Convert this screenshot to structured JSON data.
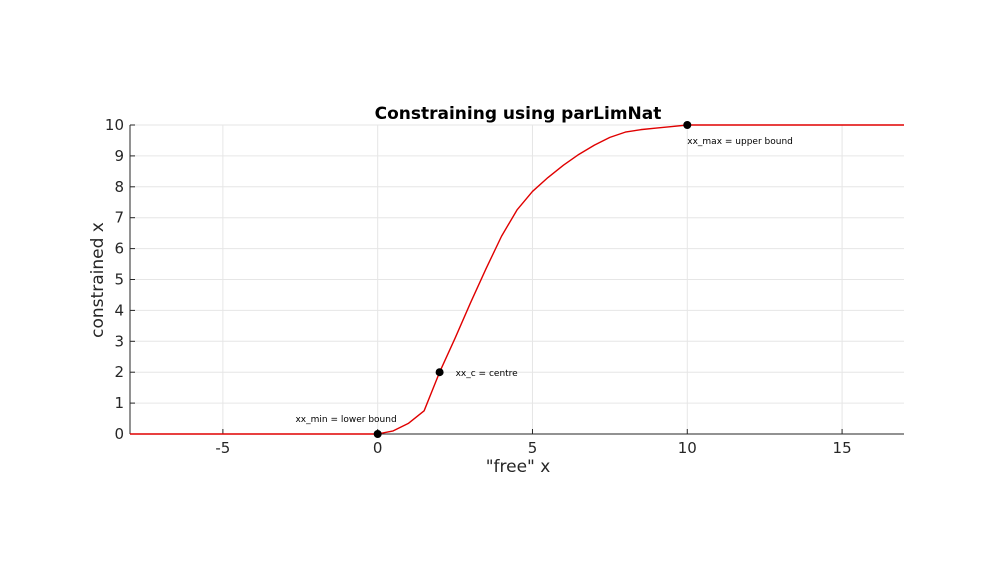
{
  "chart_data": {
    "type": "line",
    "title": "Constraining using parLimNat",
    "xlabel": "\"free\" x",
    "ylabel": "constrained x",
    "xlim": [
      -8,
      17
    ],
    "ylim": [
      0,
      10
    ],
    "xticks": [
      -5,
      0,
      5,
      10,
      15
    ],
    "yticks": [
      0,
      1,
      2,
      3,
      4,
      5,
      6,
      7,
      8,
      9,
      10
    ],
    "grid": true,
    "line_color": "#e00000",
    "series": [
      {
        "x": [
          -8,
          -1,
          0,
          0.5,
          1.0,
          1.5,
          2.0,
          2.5,
          3.0,
          3.5,
          4.0,
          4.5,
          5.0,
          5.5,
          6.0,
          6.5,
          7.0,
          7.5,
          8.0,
          8.5,
          9.0,
          9.5,
          10.0,
          10.5,
          11.0,
          12.0,
          17.0
        ],
        "y": [
          0,
          0,
          0,
          0.1,
          0.35,
          0.75,
          2.0,
          3.1,
          4.25,
          5.35,
          6.4,
          7.25,
          7.85,
          8.3,
          8.7,
          9.05,
          9.35,
          9.6,
          9.77,
          9.85,
          9.9,
          9.95,
          10.0,
          10.0,
          10.0,
          10.0,
          10.0
        ]
      }
    ],
    "points": [
      {
        "x": 0,
        "y": 0,
        "label": "xx_min = lower bound",
        "label_pos": "above-left"
      },
      {
        "x": 2,
        "y": 2,
        "label": "xx_c = centre",
        "label_pos": "right"
      },
      {
        "x": 10,
        "y": 10,
        "label": "xx_max = upper bound",
        "label_pos": "below"
      }
    ]
  }
}
